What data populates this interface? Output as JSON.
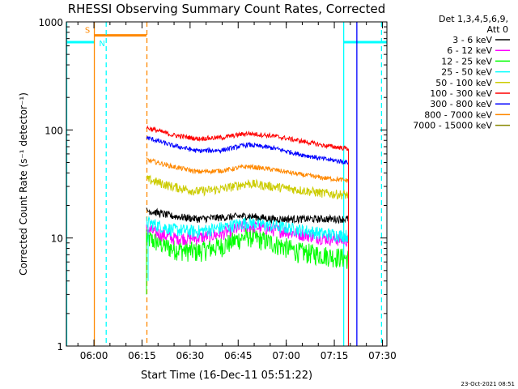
{
  "chart_data": {
    "type": "line",
    "title": "RHESSI Observing Summary Count Rates, Corrected",
    "xlabel": "Start Time (16-Dec-11 05:51:22)",
    "ylabel": "Corrected Count Rate (s⁻¹ detector⁻¹)",
    "y_scale": "log",
    "ylim": [
      1,
      1000
    ],
    "xlim_minutes": [
      0,
      100
    ],
    "x_ticks": [
      {
        "label": "06:00",
        "minute": 8.6
      },
      {
        "label": "06:15",
        "minute": 23.6
      },
      {
        "label": "06:30",
        "minute": 38.6
      },
      {
        "label": "06:45",
        "minute": 53.6
      },
      {
        "label": "07:00",
        "minute": 68.6
      },
      {
        "label": "07:15",
        "minute": 83.6
      },
      {
        "label": "07:30",
        "minute": 98.6
      }
    ],
    "y_ticks": [
      {
        "label": "1",
        "value": 1
      },
      {
        "label": "10",
        "value": 10
      },
      {
        "label": "100",
        "value": 100
      },
      {
        "label": "1000",
        "value": 1000
      }
    ],
    "legend_header": [
      "Det 1,3,4,5,6,9,",
      "Att 0"
    ],
    "legend_position": "top-right, outside plot",
    "data_range_minutes": [
      25,
      88
    ],
    "series": [
      {
        "name": "3 - 6 keV",
        "color": "#000000",
        "v": [
          18,
          16,
          15,
          15.5,
          16,
          15,
          15,
          15,
          15
        ]
      },
      {
        "name": "6 - 12 keV",
        "color": "#ff00ff",
        "v": [
          12,
          10,
          10,
          11,
          13,
          12,
          11,
          10,
          9.5
        ]
      },
      {
        "name": "12 - 25 keV",
        "color": "#00ff00",
        "v": [
          10,
          8,
          7.5,
          8.5,
          10.5,
          9,
          7.5,
          7,
          6.5
        ]
      },
      {
        "name": "25 - 50 keV",
        "color": "#00ffff",
        "v": [
          14,
          12,
          11.5,
          12.5,
          14,
          13,
          12,
          11,
          10.5
        ]
      },
      {
        "name": "50 - 100 keV",
        "color": "#cccc00",
        "v": [
          35,
          30,
          27,
          28.5,
          32,
          30,
          28,
          26,
          25
        ]
      },
      {
        "name": "100 - 300 keV",
        "color": "#ff0000",
        "v": [
          105,
          90,
          83,
          85,
          93,
          88,
          80,
          72,
          67
        ]
      },
      {
        "name": "300 - 800 keV",
        "color": "#0000ff",
        "v": [
          85,
          72,
          64,
          65,
          73,
          68,
          60,
          54,
          50
        ]
      },
      {
        "name": "800 - 7000 keV",
        "color": "#ff8800",
        "v": [
          53,
          46,
          41,
          42,
          46,
          43,
          39,
          36,
          34
        ]
      },
      {
        "name": "7000 - 15000 keV",
        "color": "#888800",
        "v": []
      }
    ],
    "bars": [
      {
        "label": "S",
        "color": "#ff8800",
        "start_minute": 8.6,
        "end_minute": 25,
        "value": 750,
        "label_side": "left"
      },
      {
        "label": "N",
        "color": "#00ffff",
        "start_minute": 0,
        "end_minute": 8.6,
        "value": 650,
        "label_side": "right"
      },
      {
        "label": "",
        "color": "#00ffff",
        "start_minute": 86.4,
        "end_minute": 100,
        "value": 650,
        "label_side": "none"
      }
    ],
    "vlines": [
      {
        "minute": 8.6,
        "color": "#ff8800",
        "style": "solid"
      },
      {
        "minute": 25,
        "color": "#ff8800",
        "style": "dashed"
      },
      {
        "minute": 0,
        "color": "#00ffff",
        "style": "solid"
      },
      {
        "minute": 12.3,
        "color": "#00ffff",
        "style": "dashed"
      },
      {
        "minute": 86.4,
        "color": "#00ffff",
        "style": "solid"
      },
      {
        "minute": 98.2,
        "color": "#00ffff",
        "style": "dashed"
      },
      {
        "minute": 90.5,
        "color": "#0000ff",
        "style": "solid"
      }
    ],
    "grid": false
  },
  "footer_date": "23-Oct-2021 08:51"
}
